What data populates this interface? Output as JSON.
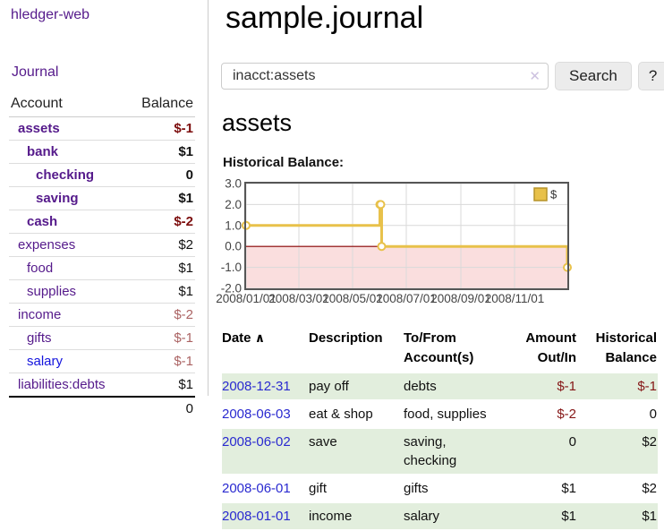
{
  "app": {
    "title": "hledger-web"
  },
  "sidebar": {
    "nav_journal": "Journal",
    "accounts_table": {
      "headers": {
        "account": "Account",
        "balance": "Balance"
      },
      "rows": [
        {
          "name": "assets",
          "indent": 1,
          "bold": true,
          "balance": "$-1",
          "balance_style": "neg-strong"
        },
        {
          "name": "bank",
          "indent": 2,
          "bold": true,
          "balance": "$1",
          "balance_style": "pos"
        },
        {
          "name": "checking",
          "indent": 3,
          "bold": true,
          "balance": "0",
          "balance_style": "pos"
        },
        {
          "name": "saving",
          "indent": 3,
          "bold": true,
          "balance": "$1",
          "balance_style": "pos"
        },
        {
          "name": "cash",
          "indent": 2,
          "bold": true,
          "balance": "$-2",
          "balance_style": "neg-strong"
        },
        {
          "name": "expenses",
          "indent": 1,
          "bold": false,
          "balance": "$2",
          "balance_style": "pos"
        },
        {
          "name": "food",
          "indent": 2,
          "bold": false,
          "balance": "$1",
          "balance_style": "pos"
        },
        {
          "name": "supplies",
          "indent": 2,
          "bold": false,
          "balance": "$1",
          "balance_style": "pos"
        },
        {
          "name": "income",
          "indent": 1,
          "bold": false,
          "balance": "$-2",
          "balance_style": "neg-soft"
        },
        {
          "name": "gifts",
          "indent": 2,
          "bold": false,
          "balance": "$-1",
          "balance_style": "neg-soft"
        },
        {
          "name": "salary",
          "indent": 2,
          "bold": false,
          "balance": "$-1",
          "balance_style": "neg-soft",
          "link_color": "blue"
        },
        {
          "name": "liabilities:debts",
          "indent": 1,
          "bold": false,
          "balance": "$1",
          "balance_style": "pos"
        }
      ],
      "total": "0"
    }
  },
  "header": {
    "title": "sample.journal"
  },
  "search": {
    "value": "inacct:assets",
    "clear_icon": "✕",
    "button_label": "Search",
    "help_label": "?"
  },
  "account_page": {
    "title": "assets",
    "chart_label": "Historical Balance:"
  },
  "chart_data": {
    "type": "line",
    "step": true,
    "title": "Historical Balance",
    "legend": "$",
    "legend_position": "top-right",
    "grid": true,
    "xlim": [
      "2008-01-01",
      "2008-12-31"
    ],
    "ylim": [
      -2,
      3
    ],
    "x_ticks": [
      {
        "date": "2008-01-01",
        "label": "2008/01/01"
      },
      {
        "date": "2008-03-01",
        "label": "2008/03/01"
      },
      {
        "date": "2008-05-01",
        "label": "2008/05/01"
      },
      {
        "date": "2008-07-01",
        "label": "2008/07/01"
      },
      {
        "date": "2008-09-01",
        "label": "2008/09/01"
      },
      {
        "date": "2008-11-01",
        "label": "2008/11/01"
      }
    ],
    "y_ticks": [
      {
        "value": 3,
        "label": "3.0"
      },
      {
        "value": 2,
        "label": "2.0"
      },
      {
        "value": 1,
        "label": "1.0"
      },
      {
        "value": 0,
        "label": "0.0"
      },
      {
        "value": -1,
        "label": "-1.0"
      },
      {
        "value": -2,
        "label": "-2.0"
      }
    ],
    "series": [
      {
        "name": "$",
        "color": "#e8c14a",
        "marker_fill": "#ffffff",
        "points": [
          [
            "2008-01-01",
            1
          ],
          [
            "2008-06-01",
            2
          ],
          [
            "2008-06-02",
            2
          ],
          [
            "2008-06-03",
            0
          ],
          [
            "2008-12-31",
            -1
          ]
        ]
      }
    ],
    "negative_region_fill": "#fadede",
    "zero_line_color": "#8b0000",
    "gridline_color": "#d9d9d9",
    "border_color": "#565656",
    "tick_label_color": "#444444"
  },
  "register_table": {
    "headers": {
      "date": "Date",
      "sort_indicator": "∧",
      "description": "Description",
      "accounts": "To/From Account(s)",
      "amount": "Amount Out/In",
      "balance": "Historical Balance"
    },
    "rows": [
      {
        "date": "2008-12-31",
        "description": "pay off",
        "accounts_lines": [
          "debts"
        ],
        "amount": "$-1",
        "amount_neg": true,
        "balance": "$-1",
        "balance_neg": true
      },
      {
        "date": "2008-06-03",
        "description": "eat & shop",
        "accounts_lines": [
          "food, supplies"
        ],
        "amount": "$-2",
        "amount_neg": true,
        "balance": "0",
        "balance_neg": false
      },
      {
        "date": "2008-06-02",
        "description": "save",
        "accounts_lines": [
          "saving,",
          "checking"
        ],
        "amount": "0",
        "amount_neg": false,
        "balance": "$2",
        "balance_neg": false
      },
      {
        "date": "2008-06-01",
        "description": "gift",
        "accounts_lines": [
          "gifts"
        ],
        "amount": "$1",
        "amount_neg": false,
        "balance": "$2",
        "balance_neg": false
      },
      {
        "date": "2008-01-01",
        "description": "income",
        "accounts_lines": [
          "salary"
        ],
        "amount": "$1",
        "amount_neg": false,
        "balance": "$1",
        "balance_neg": false
      }
    ]
  }
}
